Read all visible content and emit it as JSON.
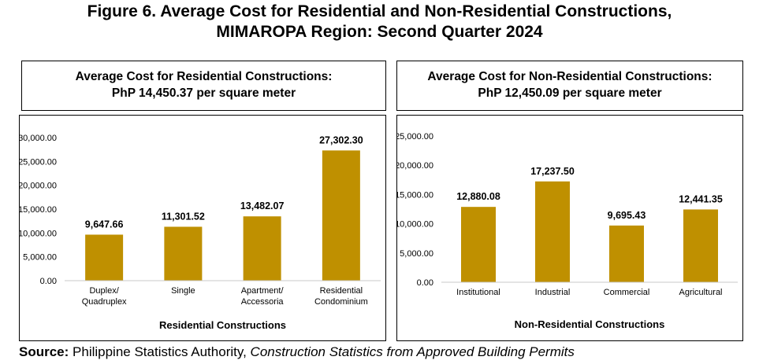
{
  "figure": {
    "title_line1": "Figure 6. Average Cost for Residential and Non-Residential Constructions,",
    "title_line2": "MIMAROPA Region: Second Quarter 2024"
  },
  "panels": [
    {
      "header_line1": "Average Cost for Residential Constructions:",
      "header_line2": "PhP 14,450.37 per square meter"
    },
    {
      "header_line1": "Average Cost for Non-Residential Constructions:",
      "header_line2": "PhP 12,450.09 per square meter"
    }
  ],
  "colors": {
    "bar": "#bf9000",
    "axis": "#c8c8c8"
  },
  "chart_data": [
    {
      "type": "bar",
      "categories": [
        [
          "Duplex/",
          "Quadruplex"
        ],
        [
          "Single"
        ],
        [
          "Apartment/",
          "Accessoria"
        ],
        [
          "Residential",
          "Condominium"
        ]
      ],
      "values": [
        9647.66,
        11301.52,
        13482.07,
        27302.3
      ],
      "value_labels": [
        "9,647.66",
        "11,301.52",
        "13,482.07",
        "27,302.30"
      ],
      "xlabel": "Residential Constructions",
      "ylabel": "",
      "ylim": [
        0,
        30000
      ],
      "yticks": [
        0,
        5000,
        10000,
        15000,
        20000,
        25000,
        30000
      ],
      "ytick_labels": [
        "0.00",
        "5,000.00",
        "10,000.00",
        "15,000.00",
        "20,000.00",
        "25,000.00",
        "30,000.00"
      ],
      "grid": false,
      "legend": "none"
    },
    {
      "type": "bar",
      "categories": [
        [
          "Institutional"
        ],
        [
          "Industrial"
        ],
        [
          "Commercial"
        ],
        [
          "Agricultural"
        ]
      ],
      "values": [
        12880.08,
        17237.5,
        9695.43,
        12441.35
      ],
      "value_labels": [
        "12,880.08",
        "17,237.50",
        "9,695.43",
        "12,441.35"
      ],
      "xlabel": "Non-Residential Constructions",
      "ylabel": "",
      "ylim": [
        0,
        25000
      ],
      "yticks": [
        0,
        5000,
        10000,
        15000,
        20000,
        25000
      ],
      "ytick_labels": [
        "0.00",
        "5,000.00",
        "10,000.00",
        "15,000.00",
        "20,000.00",
        "25,000.00"
      ],
      "grid": false,
      "legend": "none"
    }
  ],
  "source": {
    "label": "Source:",
    "agency": " Philippine Statistics Authority, ",
    "publication": "Construction Statistics from Approved Building Permits"
  }
}
